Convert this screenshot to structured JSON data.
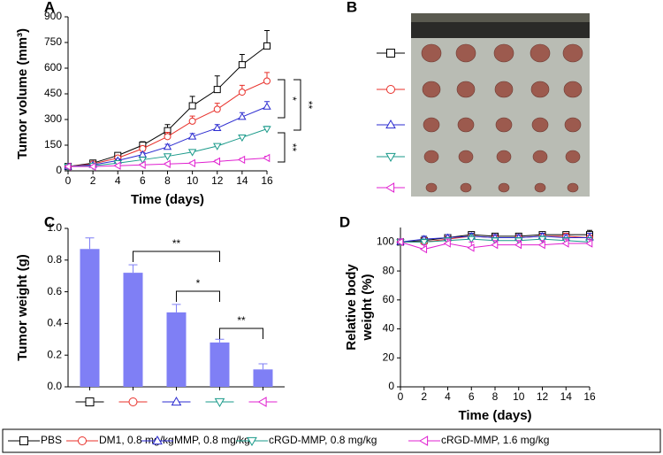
{
  "chart_data": [
    {
      "type": "line",
      "panel": "A",
      "xlabel": "Time (days)",
      "ylabel": "Tumor volume (mm³)",
      "x": [
        0,
        2,
        4,
        6,
        8,
        10,
        12,
        14,
        16
      ],
      "xlim": [
        0,
        16
      ],
      "xticks": [
        0,
        2,
        4,
        6,
        8,
        10,
        12,
        14,
        16
      ],
      "ylim": [
        0,
        900
      ],
      "yticks": [
        0,
        150,
        300,
        450,
        600,
        750,
        900
      ],
      "series": [
        {
          "name": "PBS",
          "color": "#000000",
          "marker": "square",
          "values": [
            25,
            45,
            90,
            150,
            235,
            380,
            475,
            620,
            730
          ],
          "errors": [
            5,
            10,
            15,
            20,
            35,
            55,
            80,
            60,
            90
          ]
        },
        {
          "name": "DM1, 0.8 mg/kg",
          "color": "#e8302a",
          "marker": "circle",
          "values": [
            25,
            40,
            75,
            130,
            200,
            290,
            360,
            460,
            525
          ],
          "errors": [
            5,
            8,
            12,
            15,
            25,
            30,
            35,
            40,
            50
          ]
        },
        {
          "name": "MMP, 0.8 mg/kg",
          "color": "#2b2bd0",
          "marker": "triangle-up",
          "values": [
            25,
            35,
            60,
            95,
            140,
            200,
            250,
            315,
            375
          ],
          "errors": [
            5,
            5,
            10,
            12,
            15,
            18,
            20,
            25,
            30
          ]
        },
        {
          "name": "cRGD-MMP, 0.8 mg/kg",
          "color": "#1a9a8a",
          "marker": "triangle-down",
          "values": [
            25,
            30,
            45,
            65,
            85,
            110,
            145,
            195,
            245
          ],
          "errors": [
            5,
            5,
            8,
            8,
            10,
            10,
            12,
            12,
            15
          ]
        },
        {
          "name": "cRGD-MMP, 1.6 mg/kg",
          "color": "#e020d0",
          "marker": "triangle-left",
          "values": [
            25,
            25,
            30,
            35,
            40,
            45,
            55,
            65,
            75
          ],
          "errors": [
            5,
            5,
            5,
            5,
            6,
            6,
            8,
            8,
            10
          ]
        }
      ],
      "annotations": [
        "**",
        "*",
        "**"
      ]
    },
    {
      "type": "image",
      "panel": "B"
    },
    {
      "type": "bar",
      "panel": "C",
      "ylabel": "Tumor weight (g)",
      "categories": [
        null,
        null,
        null,
        null,
        null
      ],
      "values": [
        0.87,
        0.72,
        0.47,
        0.28,
        0.11
      ],
      "errors": [
        0.07,
        0.05,
        0.05,
        0.02,
        0.035
      ],
      "color": "#7f7ff5",
      "ylim": [
        0,
        1
      ],
      "yticks": [
        {
          "value": 0,
          "label": "0.0"
        },
        0.2,
        0.4,
        0.6,
        0.8,
        {
          "value": 1,
          "label": "1.0"
        }
      ],
      "annotations": [
        "**",
        "*",
        "**"
      ]
    },
    {
      "type": "line",
      "panel": "D",
      "xlabel": "Time (days)",
      "ylabel": [
        "Relative body",
        "weight (%)"
      ],
      "x": [
        0,
        2,
        4,
        6,
        8,
        10,
        12,
        14,
        16
      ],
      "xlim": [
        0,
        16
      ],
      "xticks": [
        0,
        2,
        4,
        6,
        8,
        10,
        12,
        14,
        16
      ],
      "ylim": [
        0,
        110
      ],
      "yticks": [
        0,
        20,
        40,
        60,
        80,
        100
      ],
      "series": [
        {
          "color": "#000000",
          "marker": "square",
          "values": [
            100,
            101,
            103,
            105,
            104,
            104,
            105,
            105,
            105
          ],
          "errors": [
            2,
            3,
            2,
            2,
            2,
            2,
            2,
            2,
            3
          ]
        },
        {
          "color": "#e8302a",
          "marker": "circle",
          "values": [
            100,
            100,
            102,
            104,
            103,
            103,
            104,
            104,
            103
          ],
          "errors": [
            2,
            3,
            2,
            2,
            2,
            2,
            2,
            2,
            3
          ]
        },
        {
          "color": "#2b2bd0",
          "marker": "triangle-up",
          "values": [
            100,
            102,
            103,
            104,
            103,
            103,
            104,
            103,
            103
          ],
          "errors": [
            2,
            2,
            2,
            2,
            2,
            2,
            2,
            2,
            3
          ]
        },
        {
          "color": "#1a9a8a",
          "marker": "triangle-down",
          "values": [
            100,
            100,
            101,
            102,
            101,
            101,
            102,
            101,
            100
          ],
          "errors": [
            2,
            2,
            2,
            3,
            2,
            2,
            2,
            2,
            3
          ]
        },
        {
          "color": "#e020d0",
          "marker": "triangle-left",
          "values": [
            100,
            95,
            99,
            96,
            98,
            98,
            98,
            99,
            99
          ],
          "errors": [
            2,
            3,
            3,
            4,
            3,
            3,
            3,
            3,
            3
          ]
        }
      ]
    }
  ]
}
